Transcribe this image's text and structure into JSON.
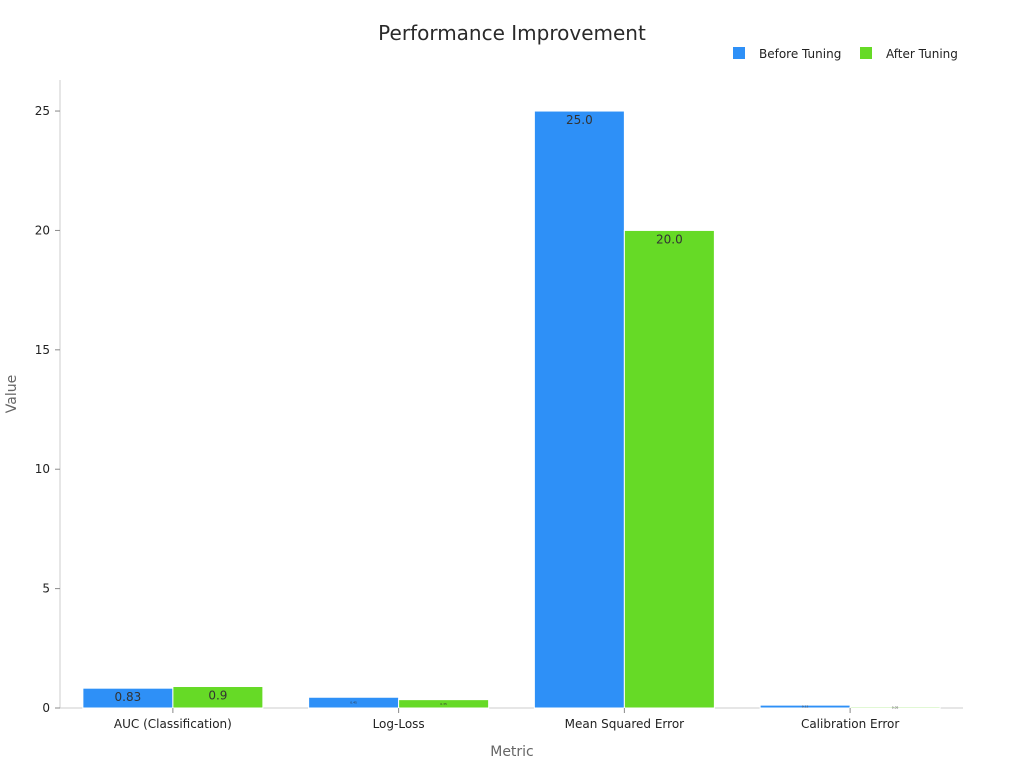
{
  "chart_data": {
    "type": "bar",
    "title": "Performance Improvement",
    "xlabel": "Metric",
    "ylabel": "Value",
    "categories": [
      "AUC (Classification)",
      "Log-Loss",
      "Mean Squared Error",
      "Calibration Error"
    ],
    "series": [
      {
        "name": "Before Tuning",
        "color": "#2e90f7",
        "values": [
          0.83,
          0.45,
          25.0,
          0.12
        ],
        "labels": [
          "0.83",
          "0.45",
          "25.0",
          "0.12"
        ]
      },
      {
        "name": "After Tuning",
        "color": "#66da26",
        "values": [
          0.9,
          0.35,
          20.0,
          0.05
        ],
        "labels": [
          "0.9",
          "0.35",
          "20.0",
          "0.05"
        ]
      }
    ],
    "ylim": [
      0,
      26.3
    ],
    "yticks": [
      0,
      5,
      10,
      15,
      20,
      25
    ],
    "grid": false,
    "legend": "top-right"
  }
}
